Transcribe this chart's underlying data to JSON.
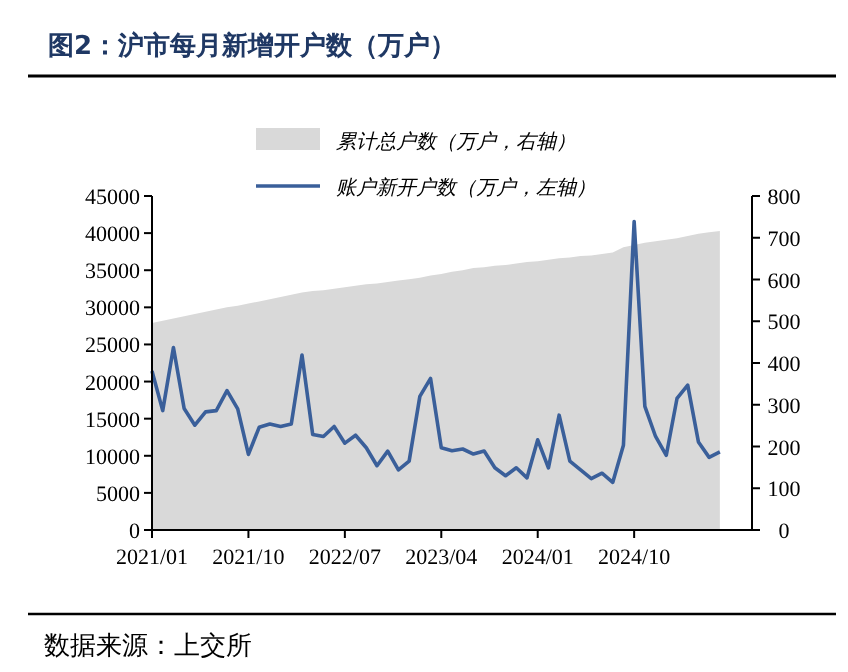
{
  "chart_data": {
    "type": "area",
    "title": "图2：沪市每月新增开户数（万户）",
    "annotations": [
      "数据来源：上交所"
    ],
    "x": [
      "2021-01",
      "2021-02",
      "2021-03",
      "2021-04",
      "2021-05",
      "2021-06",
      "2021-07",
      "2021-08",
      "2021-09",
      "2021-10",
      "2021-11",
      "2021-12",
      "2022-01",
      "2022-02",
      "2022-03",
      "2022-04",
      "2022-05",
      "2022-06",
      "2022-07",
      "2022-08",
      "2022-09",
      "2022-10",
      "2022-11",
      "2022-12",
      "2023-01",
      "2023-02",
      "2023-03",
      "2023-04",
      "2023-05",
      "2023-06",
      "2023-07",
      "2023-08",
      "2023-09",
      "2023-10",
      "2023-11",
      "2023-12",
      "2024-01",
      "2024-02",
      "2024-03",
      "2024-04",
      "2024-05",
      "2024-06",
      "2024-07",
      "2024-08",
      "2024-09",
      "2024-10",
      "2024-11",
      "2024-12",
      "2025-01",
      "2025-02",
      "2025-03",
      "2025-04",
      "2025-05",
      "2025-06"
    ],
    "series": [
      {
        "name": "累计总户数（万户，右轴）",
        "color": "#d9d9d9",
        "values": [
          27900,
          28200,
          28500,
          28800,
          29100,
          29400,
          29700,
          30000,
          30200,
          30500,
          30800,
          31100,
          31400,
          31700,
          32000,
          32200,
          32300,
          32500,
          32700,
          32900,
          33100,
          33200,
          33400,
          33600,
          33800,
          34000,
          34300,
          34500,
          34800,
          35000,
          35300,
          35400,
          35600,
          35700,
          35900,
          36100,
          36200,
          36400,
          36600,
          36700,
          36900,
          37000,
          37200,
          37400,
          38100,
          38400,
          38700,
          38900,
          39100,
          39300,
          39600,
          39900,
          40100,
          40300
        ]
      },
      {
        "name": "账户新开户数（万户，左轴）",
        "type": "line",
        "axis": "y2",
        "color": "#3a5f9a",
        "values": [
          381,
          286,
          437,
          291,
          251,
          283,
          286,
          334,
          290,
          181,
          246,
          254,
          248,
          254,
          419,
          229,
          224,
          248,
          208,
          227,
          197,
          154,
          189,
          144,
          165,
          320,
          363,
          197,
          190,
          194,
          182,
          189,
          149,
          130,
          149,
          125,
          216,
          149,
          275,
          165,
          144,
          123,
          136,
          114,
          203,
          739,
          296,
          224,
          179,
          315,
          347,
          211,
          174,
          187
        ]
      }
    ],
    "xlim": [
      "2021-01",
      "2025-09"
    ],
    "xticks": [
      {
        "value": "2021-01",
        "label": "2021/01"
      },
      {
        "value": "2021-10",
        "label": "2021/10"
      },
      {
        "value": "2022-07",
        "label": "2022/07"
      },
      {
        "value": "2023-04",
        "label": "2023/04"
      },
      {
        "value": "2024-01",
        "label": "2024/01"
      },
      {
        "value": "2024-10",
        "label": "2024/10"
      }
    ],
    "ylim": [
      0,
      45000
    ],
    "yticks": [
      0,
      5000,
      10000,
      15000,
      20000,
      25000,
      30000,
      35000,
      40000,
      45000
    ],
    "y2lim": [
      0,
      800
    ],
    "y2ticks": [
      0,
      100,
      200,
      300,
      400,
      500,
      600,
      700,
      800
    ],
    "legend": "top",
    "grid": false
  }
}
